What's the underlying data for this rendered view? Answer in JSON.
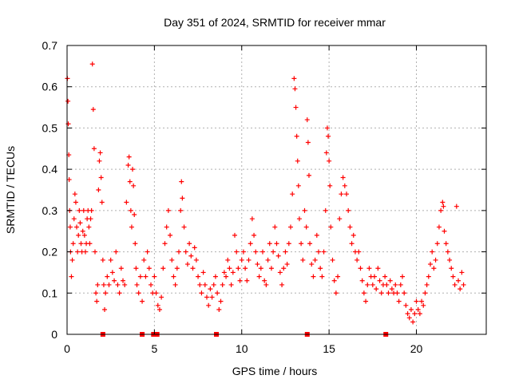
{
  "chart_data": {
    "type": "scatter",
    "title": "Day 351 of 2024, SRMTID for receiver mmar",
    "xlabel": "GPS time / hours",
    "ylabel": "SRMTID / TECUs",
    "xlim": [
      0,
      24
    ],
    "ylim": [
      0,
      0.7
    ],
    "x_ticks": [
      0,
      5,
      10,
      15,
      20
    ],
    "x_tick_labels": [
      "0",
      "5",
      "10",
      "15",
      "20"
    ],
    "y_ticks": [
      0,
      0.1,
      0.2,
      0.3,
      0.4,
      0.5,
      0.6,
      0.7
    ],
    "y_tick_labels": [
      "0",
      "0.1",
      "0.2",
      "0.3",
      "0.4",
      "0.5",
      "0.6",
      "0.7"
    ],
    "grid": true,
    "marker": "+",
    "color": "#ff0000",
    "series": [
      {
        "name": "SRMTID",
        "points": [
          [
            0.02,
            0.62
          ],
          [
            0.05,
            0.565
          ],
          [
            0.07,
            0.51
          ],
          [
            0.1,
            0.435
          ],
          [
            0.12,
            0.375
          ],
          [
            0.15,
            0.3
          ],
          [
            0.18,
            0.26
          ],
          [
            0.2,
            0.2
          ],
          [
            0.25,
            0.14
          ],
          [
            0.3,
            0.18
          ],
          [
            0.35,
            0.22
          ],
          [
            0.4,
            0.28
          ],
          [
            0.45,
            0.34
          ],
          [
            0.5,
            0.32
          ],
          [
            0.55,
            0.26
          ],
          [
            0.6,
            0.2
          ],
          [
            0.65,
            0.24
          ],
          [
            0.7,
            0.3
          ],
          [
            0.75,
            0.27
          ],
          [
            0.8,
            0.22
          ],
          [
            0.85,
            0.2
          ],
          [
            0.9,
            0.25
          ],
          [
            0.95,
            0.3
          ],
          [
            1.0,
            0.24
          ],
          [
            1.05,
            0.2
          ],
          [
            1.1,
            0.22
          ],
          [
            1.15,
            0.28
          ],
          [
            1.2,
            0.3
          ],
          [
            1.25,
            0.26
          ],
          [
            1.3,
            0.22
          ],
          [
            1.35,
            0.28
          ],
          [
            1.4,
            0.3
          ],
          [
            1.45,
            0.655
          ],
          [
            1.5,
            0.545
          ],
          [
            1.55,
            0.45
          ],
          [
            1.6,
            0.2
          ],
          [
            1.65,
            0.1
          ],
          [
            1.7,
            0.08
          ],
          [
            1.75,
            0.12
          ],
          [
            1.8,
            0.35
          ],
          [
            1.85,
            0.42
          ],
          [
            1.9,
            0.44
          ],
          [
            1.95,
            0.38
          ],
          [
            2.0,
            0.32
          ],
          [
            2.05,
            0.18
          ],
          [
            2.1,
            0.12
          ],
          [
            2.15,
            0.06
          ],
          [
            2.2,
            0.1
          ],
          [
            2.3,
            0.14
          ],
          [
            2.4,
            0.12
          ],
          [
            2.5,
            0.18
          ],
          [
            2.6,
            0.15
          ],
          [
            2.7,
            0.13
          ],
          [
            2.8,
            0.2
          ],
          [
            2.9,
            0.12
          ],
          [
            3.0,
            0.1
          ],
          [
            3.1,
            0.16
          ],
          [
            3.2,
            0.13
          ],
          [
            3.3,
            0.12
          ],
          [
            3.4,
            0.32
          ],
          [
            3.5,
            0.41
          ],
          [
            3.55,
            0.43
          ],
          [
            3.6,
            0.37
          ],
          [
            3.65,
            0.3
          ],
          [
            3.7,
            0.26
          ],
          [
            3.75,
            0.4
          ],
          [
            3.8,
            0.36
          ],
          [
            3.85,
            0.29
          ],
          [
            3.9,
            0.22
          ],
          [
            3.95,
            0.16
          ],
          [
            4.0,
            0.12
          ],
          [
            4.1,
            0.1
          ],
          [
            4.2,
            0.14
          ],
          [
            4.3,
            0.08
          ],
          [
            4.4,
            0.18
          ],
          [
            4.5,
            0.14
          ],
          [
            4.6,
            0.2
          ],
          [
            4.7,
            0.16
          ],
          [
            4.8,
            0.12
          ],
          [
            4.9,
            0.1
          ],
          [
            5.0,
            0.14
          ],
          [
            5.1,
            0.1
          ],
          [
            5.2,
            0.07
          ],
          [
            5.3,
            0.06
          ],
          [
            5.4,
            0.09
          ],
          [
            5.5,
            0.16
          ],
          [
            5.6,
            0.22
          ],
          [
            5.7,
            0.26
          ],
          [
            5.8,
            0.3
          ],
          [
            5.9,
            0.24
          ],
          [
            6.0,
            0.18
          ],
          [
            6.1,
            0.14
          ],
          [
            6.2,
            0.12
          ],
          [
            6.3,
            0.16
          ],
          [
            6.4,
            0.2
          ],
          [
            6.5,
            0.3
          ],
          [
            6.55,
            0.37
          ],
          [
            6.6,
            0.33
          ],
          [
            6.7,
            0.26
          ],
          [
            6.8,
            0.2
          ],
          [
            6.9,
            0.17
          ],
          [
            7.0,
            0.22
          ],
          [
            7.1,
            0.19
          ],
          [
            7.2,
            0.16
          ],
          [
            7.3,
            0.21
          ],
          [
            7.4,
            0.18
          ],
          [
            7.5,
            0.14
          ],
          [
            7.6,
            0.12
          ],
          [
            7.7,
            0.1
          ],
          [
            7.8,
            0.15
          ],
          [
            7.9,
            0.12
          ],
          [
            8.0,
            0.09
          ],
          [
            8.1,
            0.07
          ],
          [
            8.2,
            0.11
          ],
          [
            8.3,
            0.09
          ],
          [
            8.4,
            0.12
          ],
          [
            8.5,
            0.14
          ],
          [
            8.6,
            0.1
          ],
          [
            8.7,
            0.06
          ],
          [
            8.8,
            0.08
          ],
          [
            8.9,
            0.12
          ],
          [
            9.0,
            0.15
          ],
          [
            9.1,
            0.14
          ],
          [
            9.2,
            0.18
          ],
          [
            9.3,
            0.16
          ],
          [
            9.4,
            0.12
          ],
          [
            9.5,
            0.15
          ],
          [
            9.6,
            0.24
          ],
          [
            9.7,
            0.2
          ],
          [
            9.8,
            0.16
          ],
          [
            9.9,
            0.13
          ],
          [
            10.0,
            0.18
          ],
          [
            10.1,
            0.2
          ],
          [
            10.2,
            0.16
          ],
          [
            10.3,
            0.13
          ],
          [
            10.4,
            0.18
          ],
          [
            10.5,
            0.22
          ],
          [
            10.6,
            0.28
          ],
          [
            10.7,
            0.24
          ],
          [
            10.8,
            0.2
          ],
          [
            10.9,
            0.17
          ],
          [
            11.0,
            0.14
          ],
          [
            11.1,
            0.16
          ],
          [
            11.2,
            0.2
          ],
          [
            11.3,
            0.13
          ],
          [
            11.4,
            0.12
          ],
          [
            11.5,
            0.18
          ],
          [
            11.6,
            0.22
          ],
          [
            11.7,
            0.16
          ],
          [
            11.8,
            0.2
          ],
          [
            11.9,
            0.26
          ],
          [
            12.0,
            0.22
          ],
          [
            12.1,
            0.19
          ],
          [
            12.2,
            0.15
          ],
          [
            12.3,
            0.12
          ],
          [
            12.4,
            0.16
          ],
          [
            12.5,
            0.2
          ],
          [
            12.6,
            0.17
          ],
          [
            12.7,
            0.22
          ],
          [
            12.8,
            0.26
          ],
          [
            12.9,
            0.34
          ],
          [
            13.0,
            0.62
          ],
          [
            13.05,
            0.595
          ],
          [
            13.1,
            0.55
          ],
          [
            13.15,
            0.48
          ],
          [
            13.2,
            0.42
          ],
          [
            13.25,
            0.36
          ],
          [
            13.3,
            0.28
          ],
          [
            13.4,
            0.22
          ],
          [
            13.5,
            0.18
          ],
          [
            13.6,
            0.3
          ],
          [
            13.7,
            0.26
          ],
          [
            13.75,
            0.52
          ],
          [
            13.8,
            0.465
          ],
          [
            13.85,
            0.385
          ],
          [
            13.9,
            0.22
          ],
          [
            14.0,
            0.17
          ],
          [
            14.1,
            0.14
          ],
          [
            14.2,
            0.18
          ],
          [
            14.3,
            0.24
          ],
          [
            14.4,
            0.2
          ],
          [
            14.5,
            0.16
          ],
          [
            14.6,
            0.14
          ],
          [
            14.7,
            0.2
          ],
          [
            14.8,
            0.3
          ],
          [
            14.85,
            0.44
          ],
          [
            14.9,
            0.5
          ],
          [
            14.95,
            0.48
          ],
          [
            15.0,
            0.42
          ],
          [
            15.05,
            0.36
          ],
          [
            15.1,
            0.26
          ],
          [
            15.2,
            0.18
          ],
          [
            15.3,
            0.13
          ],
          [
            15.4,
            0.1
          ],
          [
            15.5,
            0.14
          ],
          [
            15.6,
            0.28
          ],
          [
            15.7,
            0.34
          ],
          [
            15.8,
            0.38
          ],
          [
            15.9,
            0.36
          ],
          [
            16.0,
            0.34
          ],
          [
            16.1,
            0.3
          ],
          [
            16.2,
            0.26
          ],
          [
            16.3,
            0.22
          ],
          [
            16.4,
            0.24
          ],
          [
            16.5,
            0.2
          ],
          [
            16.6,
            0.18
          ],
          [
            16.7,
            0.2
          ],
          [
            16.8,
            0.16
          ],
          [
            16.9,
            0.13
          ],
          [
            17.0,
            0.1
          ],
          [
            17.1,
            0.08
          ],
          [
            17.2,
            0.12
          ],
          [
            17.3,
            0.16
          ],
          [
            17.4,
            0.14
          ],
          [
            17.5,
            0.12
          ],
          [
            17.6,
            0.14
          ],
          [
            17.7,
            0.11
          ],
          [
            17.8,
            0.16
          ],
          [
            17.9,
            0.13
          ],
          [
            18.0,
            0.1
          ],
          [
            18.1,
            0.12
          ],
          [
            18.2,
            0.14
          ],
          [
            18.3,
            0.12
          ],
          [
            18.4,
            0.1
          ],
          [
            18.5,
            0.13
          ],
          [
            18.6,
            0.11
          ],
          [
            18.7,
            0.1
          ],
          [
            18.8,
            0.12
          ],
          [
            18.9,
            0.1
          ],
          [
            19.0,
            0.08
          ],
          [
            19.1,
            0.12
          ],
          [
            19.2,
            0.14
          ],
          [
            19.3,
            0.1
          ],
          [
            19.4,
            0.07
          ],
          [
            19.5,
            0.05
          ],
          [
            19.6,
            0.04
          ],
          [
            19.7,
            0.06
          ],
          [
            19.8,
            0.03
          ],
          [
            19.9,
            0.05
          ],
          [
            20.0,
            0.08
          ],
          [
            20.1,
            0.06
          ],
          [
            20.2,
            0.05
          ],
          [
            20.3,
            0.08
          ],
          [
            20.4,
            0.07
          ],
          [
            20.5,
            0.1
          ],
          [
            20.6,
            0.12
          ],
          [
            20.7,
            0.14
          ],
          [
            20.8,
            0.17
          ],
          [
            20.9,
            0.2
          ],
          [
            21.0,
            0.16
          ],
          [
            21.1,
            0.18
          ],
          [
            21.2,
            0.22
          ],
          [
            21.3,
            0.26
          ],
          [
            21.4,
            0.3
          ],
          [
            21.5,
            0.32
          ],
          [
            21.55,
            0.31
          ],
          [
            21.6,
            0.25
          ],
          [
            21.7,
            0.22
          ],
          [
            21.8,
            0.2
          ],
          [
            21.9,
            0.18
          ],
          [
            22.0,
            0.16
          ],
          [
            22.1,
            0.14
          ],
          [
            22.2,
            0.12
          ],
          [
            22.3,
            0.31
          ],
          [
            22.4,
            0.13
          ],
          [
            22.5,
            0.11
          ],
          [
            22.6,
            0.15
          ],
          [
            22.7,
            0.12
          ]
        ],
        "zero_values_x": [
          2.05,
          4.3,
          4.95,
          5.15,
          8.55,
          13.75,
          18.25
        ]
      }
    ]
  }
}
